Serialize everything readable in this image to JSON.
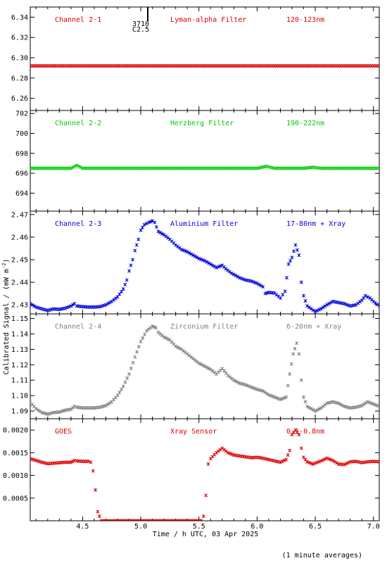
{
  "xlabel": "Time / h UTC, 03 Apr 2025",
  "ylabel": "Calibrated Signal / (mW m",
  "ylabel_sup": "-2",
  "ylabel_close": ")",
  "footnote": "(1 minute averages)",
  "annotation": {
    "line1": "3710",
    "line2": "C2.5",
    "x": 5.03
  },
  "chart_data": [
    {
      "type": "scatter",
      "xlim": [
        4.05,
        7.05
      ],
      "ylim": [
        6.248,
        6.35
      ],
      "yticks": [
        6.26,
        6.28,
        6.3,
        6.32,
        6.34
      ],
      "ytick_labels": [
        "6.26",
        "6.28",
        "6.30",
        "6.32",
        "6.34"
      ],
      "labels": [
        "Channel 2-1",
        "Lyman-alpha Filter",
        "120-123nm"
      ],
      "color": "#dd0000",
      "points": [
        [
          4.05,
          6.292
        ],
        [
          4.25,
          6.292
        ],
        [
          4.45,
          6.292
        ],
        [
          4.65,
          6.292
        ],
        [
          4.85,
          6.292
        ],
        [
          5.05,
          6.292
        ],
        [
          5.25,
          6.292
        ],
        [
          5.45,
          6.292
        ],
        [
          5.65,
          6.292
        ],
        [
          5.85,
          6.292
        ],
        [
          6.05,
          6.292
        ],
        [
          6.25,
          6.292
        ],
        [
          6.45,
          6.292
        ],
        [
          6.65,
          6.292
        ],
        [
          6.85,
          6.292
        ],
        [
          7.05,
          6.292
        ]
      ]
    },
    {
      "type": "scatter",
      "xlim": [
        4.05,
        7.05
      ],
      "ylim": [
        692.2,
        702.3
      ],
      "yticks": [
        694,
        696,
        698,
        700,
        702
      ],
      "ytick_labels": [
        "694",
        "696",
        "698",
        "700",
        "702"
      ],
      "labels": [
        "Channel 2-2",
        "Herzberg Filter",
        "190-222nm"
      ],
      "color": "#00cc00",
      "points": [
        [
          4.05,
          696.5
        ],
        [
          4.25,
          696.5
        ],
        [
          4.4,
          696.5
        ],
        [
          4.45,
          696.8
        ],
        [
          4.5,
          696.5
        ],
        [
          4.75,
          696.5
        ],
        [
          5.0,
          696.5
        ],
        [
          5.25,
          696.5
        ],
        [
          5.5,
          696.5
        ],
        [
          5.75,
          696.5
        ],
        [
          6.0,
          696.5
        ],
        [
          6.08,
          696.7
        ],
        [
          6.15,
          696.5
        ],
        [
          6.4,
          696.5
        ],
        [
          6.48,
          696.6
        ],
        [
          6.55,
          696.5
        ],
        [
          6.8,
          696.5
        ],
        [
          7.05,
          696.5
        ]
      ]
    },
    {
      "type": "scatter",
      "xlim": [
        4.05,
        7.05
      ],
      "ylim": [
        2.426,
        2.4715
      ],
      "yticks": [
        2.43,
        2.44,
        2.45,
        2.46,
        2.47
      ],
      "ytick_labels": [
        "2.43",
        "2.44",
        "2.45",
        "2.46",
        "2.47"
      ],
      "labels": [
        "Channel 2-3",
        "Aluminium Filter",
        "17-80nm + Xray"
      ],
      "color": "#0000dd",
      "points": [
        [
          4.05,
          2.4305
        ],
        [
          4.1,
          2.429
        ],
        [
          4.15,
          2.4282
        ],
        [
          4.2,
          2.4275
        ],
        [
          4.25,
          2.4282
        ],
        [
          4.3,
          2.428
        ],
        [
          4.35,
          2.4285
        ],
        [
          4.4,
          2.4295
        ],
        [
          4.43,
          2.4305
        ],
        [
          4.45,
          2.4295
        ],
        [
          4.5,
          2.4292
        ],
        [
          4.55,
          2.429
        ],
        [
          4.6,
          2.429
        ],
        [
          4.65,
          2.4292
        ],
        [
          4.7,
          2.43
        ],
        [
          4.75,
          2.4315
        ],
        [
          4.8,
          2.4335
        ],
        [
          4.85,
          2.437
        ],
        [
          4.88,
          2.441
        ],
        [
          4.9,
          2.445
        ],
        [
          4.93,
          2.45
        ],
        [
          4.95,
          2.454
        ],
        [
          4.98,
          2.459
        ],
        [
          5.0,
          2.463
        ],
        [
          5.03,
          2.4655
        ],
        [
          5.07,
          2.4665
        ],
        [
          5.1,
          2.4672
        ],
        [
          5.12,
          2.4665
        ],
        [
          5.15,
          2.4625
        ],
        [
          5.2,
          2.461
        ],
        [
          5.25,
          2.459
        ],
        [
          5.3,
          2.4565
        ],
        [
          5.35,
          2.4545
        ],
        [
          5.4,
          2.4535
        ],
        [
          5.45,
          2.452
        ],
        [
          5.5,
          2.4505
        ],
        [
          5.55,
          2.4495
        ],
        [
          5.6,
          2.448
        ],
        [
          5.65,
          2.4465
        ],
        [
          5.7,
          2.4475
        ],
        [
          5.73,
          2.446
        ],
        [
          5.78,
          2.444
        ],
        [
          5.85,
          2.442
        ],
        [
          5.9,
          2.441
        ],
        [
          5.95,
          2.4405
        ],
        [
          6.0,
          2.4395
        ],
        [
          6.05,
          2.438
        ],
        [
          6.07,
          2.435
        ],
        [
          6.1,
          2.4355
        ],
        [
          6.15,
          2.4352
        ],
        [
          6.2,
          2.433
        ],
        [
          6.24,
          2.436
        ],
        [
          6.27,
          2.448
        ],
        [
          6.3,
          2.451
        ],
        [
          6.33,
          2.4565
        ],
        [
          6.36,
          2.452
        ],
        [
          6.38,
          2.44
        ],
        [
          6.4,
          2.434
        ],
        [
          6.43,
          2.4295
        ],
        [
          6.5,
          2.427
        ],
        [
          6.55,
          2.4283
        ],
        [
          6.6,
          2.43
        ],
        [
          6.65,
          2.4315
        ],
        [
          6.7,
          2.431
        ],
        [
          6.75,
          2.4305
        ],
        [
          6.8,
          2.4295
        ],
        [
          6.85,
          2.43
        ],
        [
          6.9,
          2.432
        ],
        [
          6.93,
          2.434
        ],
        [
          6.97,
          2.433
        ],
        [
          7.0,
          2.4315
        ],
        [
          7.05,
          2.4295
        ]
      ]
    },
    {
      "type": "scatter",
      "xlim": [
        4.05,
        7.05
      ],
      "ylim": [
        1.085,
        1.153
      ],
      "yticks": [
        1.09,
        1.1,
        1.11,
        1.12,
        1.13,
        1.14,
        1.15
      ],
      "ytick_labels": [
        "1.09",
        "1.10",
        "1.11",
        "1.12",
        "1.13",
        "1.14",
        "1.15"
      ],
      "labels": [
        "Channel 2-4",
        "Zirconium Filter",
        "6-20nm + Xray"
      ],
      "color": "#808080",
      "points": [
        [
          4.05,
          1.0955
        ],
        [
          4.1,
          1.0915
        ],
        [
          4.15,
          1.089
        ],
        [
          4.2,
          1.088
        ],
        [
          4.25,
          1.089
        ],
        [
          4.3,
          1.0893
        ],
        [
          4.35,
          1.0905
        ],
        [
          4.4,
          1.0912
        ],
        [
          4.43,
          1.093
        ],
        [
          4.45,
          1.0925
        ],
        [
          4.5,
          1.092
        ],
        [
          4.55,
          1.092
        ],
        [
          4.6,
          1.092
        ],
        [
          4.65,
          1.0925
        ],
        [
          4.7,
          1.0935
        ],
        [
          4.75,
          1.096
        ],
        [
          4.8,
          1.1
        ],
        [
          4.85,
          1.106
        ],
        [
          4.9,
          1.114
        ],
        [
          4.95,
          1.125
        ],
        [
          5.0,
          1.135
        ],
        [
          5.05,
          1.142
        ],
        [
          5.1,
          1.145
        ],
        [
          5.13,
          1.144
        ],
        [
          5.15,
          1.141
        ],
        [
          5.2,
          1.138
        ],
        [
          5.25,
          1.136
        ],
        [
          5.3,
          1.132
        ],
        [
          5.35,
          1.13
        ],
        [
          5.4,
          1.127
        ],
        [
          5.45,
          1.124
        ],
        [
          5.5,
          1.121
        ],
        [
          5.55,
          1.119
        ],
        [
          5.6,
          1.117
        ],
        [
          5.65,
          1.114
        ],
        [
          5.7,
          1.1175
        ],
        [
          5.75,
          1.113
        ],
        [
          5.8,
          1.11
        ],
        [
          5.85,
          1.108
        ],
        [
          5.9,
          1.107
        ],
        [
          5.95,
          1.1055
        ],
        [
          6.0,
          1.104
        ],
        [
          6.05,
          1.103
        ],
        [
          6.1,
          1.1005
        ],
        [
          6.15,
          1.099
        ],
        [
          6.2,
          1.0975
        ],
        [
          6.25,
          1.099
        ],
        [
          6.28,
          1.114
        ],
        [
          6.31,
          1.127
        ],
        [
          6.34,
          1.134
        ],
        [
          6.36,
          1.127
        ],
        [
          6.38,
          1.11
        ],
        [
          6.4,
          1.099
        ],
        [
          6.43,
          1.093
        ],
        [
          6.5,
          1.09
        ],
        [
          6.55,
          1.092
        ],
        [
          6.6,
          1.095
        ],
        [
          6.65,
          1.096
        ],
        [
          6.7,
          1.095
        ],
        [
          6.75,
          1.093
        ],
        [
          6.8,
          1.092
        ],
        [
          6.85,
          1.0925
        ],
        [
          6.9,
          1.0935
        ],
        [
          6.95,
          1.096
        ],
        [
          7.0,
          1.0945
        ],
        [
          7.05,
          1.093
        ]
      ]
    },
    {
      "type": "scatter",
      "xlim": [
        4.05,
        7.05
      ],
      "ylim": [
        0.0,
        0.00225
      ],
      "yticks": [
        0.0005,
        0.001,
        0.0015,
        0.002
      ],
      "ytick_labels": [
        "0.0005",
        "0.0010",
        "0.0015",
        "0.0020"
      ],
      "labels": [
        "GOES",
        "Xray Sensor",
        "0.1-0.8nm"
      ],
      "color": "#dd0000",
      "points": [
        [
          4.05,
          0.00137
        ],
        [
          4.1,
          0.00133
        ],
        [
          4.15,
          0.00129
        ],
        [
          4.2,
          0.00126
        ],
        [
          4.25,
          0.00127
        ],
        [
          4.3,
          0.00128
        ],
        [
          4.35,
          0.00129
        ],
        [
          4.4,
          0.00129
        ],
        [
          4.43,
          0.00133
        ],
        [
          4.45,
          0.00132
        ],
        [
          4.5,
          0.00131
        ],
        [
          4.55,
          0.00131
        ],
        [
          4.57,
          0.00129
        ],
        [
          4.59,
          0.0011
        ],
        [
          4.61,
          0.00068
        ],
        [
          4.63,
          0.0002
        ],
        [
          4.66,
          0.0
        ],
        [
          4.8,
          0.0
        ],
        [
          5.0,
          0.0
        ],
        [
          5.2,
          0.0
        ],
        [
          5.4,
          0.0
        ],
        [
          5.52,
          0.0
        ],
        [
          5.54,
          0.0001
        ],
        [
          5.56,
          0.00056
        ],
        [
          5.58,
          0.00125
        ],
        [
          5.6,
          0.00137
        ],
        [
          5.65,
          0.0015
        ],
        [
          5.7,
          0.0016
        ],
        [
          5.75,
          0.0015
        ],
        [
          5.8,
          0.00145
        ],
        [
          5.85,
          0.00143
        ],
        [
          5.9,
          0.00141
        ],
        [
          5.95,
          0.00139
        ],
        [
          6.0,
          0.0014
        ],
        [
          6.05,
          0.00138
        ],
        [
          6.1,
          0.00135
        ],
        [
          6.15,
          0.00132
        ],
        [
          6.2,
          0.00129
        ],
        [
          6.25,
          0.00135
        ],
        [
          6.28,
          0.00155
        ],
        [
          6.3,
          0.0019
        ],
        [
          6.33,
          0.002
        ],
        [
          6.36,
          0.0019
        ],
        [
          6.38,
          0.0016
        ],
        [
          6.4,
          0.0014
        ],
        [
          6.43,
          0.0013
        ],
        [
          6.48,
          0.00125
        ],
        [
          6.55,
          0.00132
        ],
        [
          6.6,
          0.00138
        ],
        [
          6.65,
          0.00133
        ],
        [
          6.7,
          0.00125
        ],
        [
          6.75,
          0.00124
        ],
        [
          6.8,
          0.0013
        ],
        [
          6.85,
          0.00131
        ],
        [
          6.9,
          0.00128
        ],
        [
          6.95,
          0.0013
        ],
        [
          7.0,
          0.00131
        ],
        [
          7.05,
          0.0013
        ]
      ]
    }
  ],
  "xticks": [
    4.5,
    5.0,
    5.5,
    6.0,
    6.5,
    7.0
  ],
  "xtick_labels": [
    "4.5",
    "5.0",
    "5.5",
    "6.0",
    "6.5",
    "7.0"
  ]
}
